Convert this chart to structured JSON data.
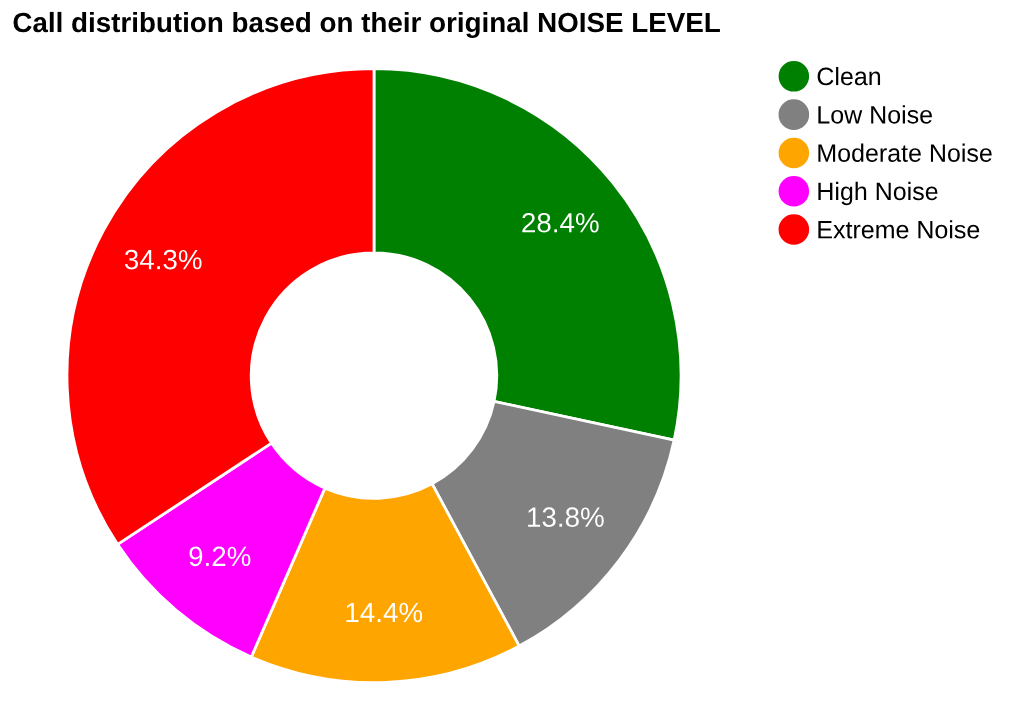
{
  "chart_data": {
    "type": "donut",
    "title": "Call distribution based on their original NOISE LEVEL",
    "categories": [
      "Clean",
      "Low Noise",
      "Moderate Noise",
      "High Noise",
      "Extreme Noise"
    ],
    "values": [
      28.4,
      13.8,
      14.4,
      9.2,
      34.3
    ],
    "value_labels": [
      "28.4%",
      "13.8%",
      "14.4%",
      "9.2%",
      "34.3%"
    ],
    "colors": [
      "#008000",
      "#808080",
      "#ffa500",
      "#ff00ff",
      "#ff0000"
    ],
    "legend": "right"
  }
}
